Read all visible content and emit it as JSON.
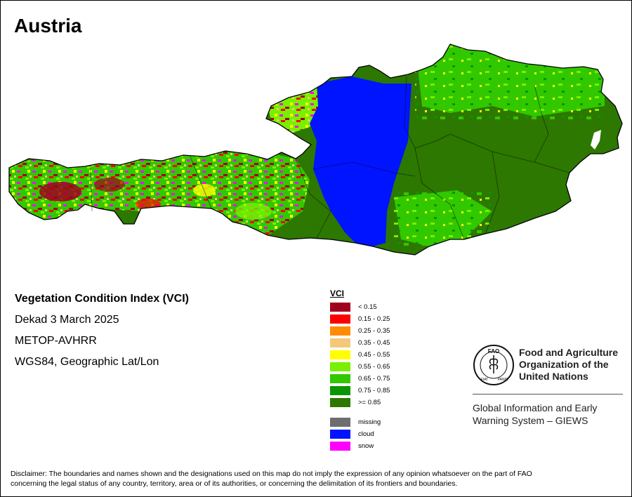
{
  "map": {
    "title": "Austria",
    "info": {
      "index_name": "Vegetation Condition Index (VCI)",
      "period": "Dekad 3 March 2025",
      "sensor": "METOP-AVHRR",
      "projection": "WGS84, Geographic Lat/Lon"
    },
    "legend": {
      "title": "VCI",
      "classes": [
        {
          "label": "< 0.15",
          "color": "#A0001E"
        },
        {
          "label": "0.15 - 0.25",
          "color": "#FF0000"
        },
        {
          "label": "0.25 - 0.35",
          "color": "#FF8C00"
        },
        {
          "label": "0.35 - 0.45",
          "color": "#F5C878"
        },
        {
          "label": "0.45 - 0.55",
          "color": "#FFFF00"
        },
        {
          "label": "0.55 - 0.65",
          "color": "#78F000"
        },
        {
          "label": "0.65 - 0.75",
          "color": "#32C800"
        },
        {
          "label": "0.75 - 0.85",
          "color": "#0A9600"
        },
        {
          "label": ">= 0.85",
          "color": "#2D7800"
        }
      ],
      "special": [
        {
          "label": "missing",
          "color": "#6E6E6E"
        },
        {
          "label": "cloud",
          "color": "#0014FF"
        },
        {
          "label": "snow",
          "color": "#FF00FF"
        }
      ]
    },
    "colors": {
      "dominant": "#2D7800",
      "mid": "#32C800",
      "cloud": "#0014FF",
      "lake": "#FFFFFF",
      "border": "#000000"
    }
  },
  "org": {
    "name_line1": "Food and Agriculture",
    "name_line2": "Organization of the",
    "name_line3": "United Nations",
    "logo_letters": "FAO",
    "logo_motto_left": "FIAT",
    "logo_motto_right": "PANIS",
    "system_line1": "Global Information and Early",
    "system_line2": "Warning System – GIEWS"
  },
  "disclaimer": {
    "line1": "Disclaimer: The boundaries and names shown and the designations used on this map do not imply the expression of any opinion whatsoever on the part of FAO",
    "line2": "concerning the legal status of any country, territory, area or of its authorities, or concerning the delimitation of its frontiers and boundaries."
  }
}
